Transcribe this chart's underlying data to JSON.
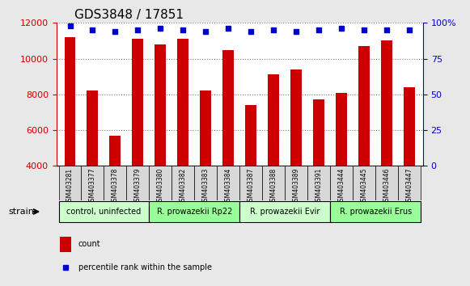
{
  "title": "GDS3848 / 17851",
  "samples": [
    "GSM403281",
    "GSM403377",
    "GSM403378",
    "GSM403379",
    "GSM403380",
    "GSM403382",
    "GSM403383",
    "GSM403384",
    "GSM403387",
    "GSM403388",
    "GSM403389",
    "GSM403391",
    "GSM403444",
    "GSM403445",
    "GSM403446",
    "GSM403447"
  ],
  "counts": [
    11200,
    8200,
    5700,
    11100,
    10800,
    11100,
    8200,
    10500,
    7400,
    9100,
    9400,
    7700,
    8100,
    10700,
    11000,
    8400
  ],
  "percentiles": [
    98,
    95,
    94,
    95,
    96,
    95,
    94,
    96,
    94,
    95,
    94,
    95,
    96,
    95,
    95,
    95
  ],
  "groups": [
    {
      "label": "control, uninfected",
      "start": 0,
      "end": 4,
      "color": "#ccffcc"
    },
    {
      "label": "R. prowazekii Rp22",
      "start": 4,
      "end": 8,
      "color": "#99ff99"
    },
    {
      "label": "R. prowazekii Evir",
      "start": 8,
      "end": 12,
      "color": "#ccffcc"
    },
    {
      "label": "R. prowazekii Erus",
      "start": 12,
      "end": 16,
      "color": "#99ff99"
    }
  ],
  "ylim_left": [
    4000,
    12000
  ],
  "ylim_right": [
    0,
    100
  ],
  "yticks_left": [
    4000,
    6000,
    8000,
    10000,
    12000
  ],
  "yticks_right": [
    0,
    25,
    50,
    75,
    100
  ],
  "bar_color": "#cc0000",
  "dot_color": "#0000cc",
  "bg_color": "#e8e8e8",
  "plot_bg": "#ffffff",
  "title_fontsize": 11,
  "axis_label_color_left": "#cc0000",
  "axis_label_color_right": "#0000cc"
}
